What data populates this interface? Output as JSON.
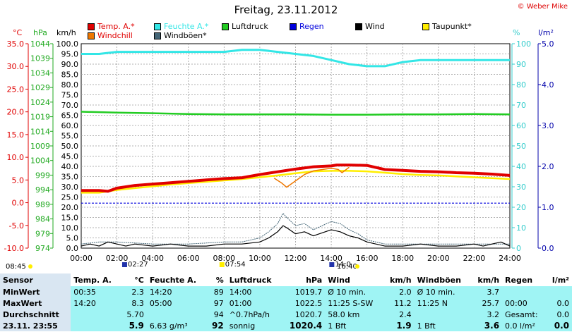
{
  "title": "Freitag, 23.11.2012",
  "copyright": "© Weber Mike",
  "legend": [
    {
      "label": "Temp. A.*",
      "color": "#e00000",
      "text_color": "#e00000"
    },
    {
      "label": "Feuchte A.*",
      "color": "#33e6e6",
      "text_color": "#33e6e6"
    },
    {
      "label": "Luftdruck",
      "color": "#22cc22",
      "text_color": "#000000"
    },
    {
      "label": "Regen",
      "color": "#0000dd",
      "text_color": "#0000dd"
    },
    {
      "label": "Wind",
      "color": "#000000",
      "text_color": "#000000"
    },
    {
      "label": "Taupunkt*",
      "color": "#ffee00",
      "text_color": "#000000"
    },
    {
      "label": "Windchill",
      "color": "#ee7700",
      "text_color": "#e00000"
    },
    {
      "label": "Windböen*",
      "color": "#446677",
      "text_color": "#000000"
    }
  ],
  "units": {
    "temp": "°C",
    "pressure": "hPa",
    "wind": "km/h",
    "humidity": "%",
    "rain": "l/m²"
  },
  "axes": {
    "temp_ticks": [
      "35.0",
      "30.0",
      "25.0",
      "20.0",
      "15.0",
      "10.0",
      "5.0",
      "0.0",
      "-5.0",
      "-10.0"
    ],
    "pressure_ticks": [
      "1044",
      "1039",
      "1034",
      "1029",
      "1024",
      "1019",
      "1014",
      "1009",
      "1004",
      "999",
      "994",
      "989",
      "984",
      "979",
      "974"
    ],
    "wind_ticks": [
      "100.0",
      "95.0",
      "90.0",
      "85.0",
      "80.0",
      "75.0",
      "70.0",
      "65.0",
      "60.0",
      "55.0",
      "50.0",
      "45.0",
      "40.0",
      "35.0",
      "30.0",
      "25.0",
      "20.0",
      "15.0",
      "10.0",
      "5.0",
      "0.0"
    ],
    "humidity_ticks": [
      "100",
      "90",
      "80",
      "70",
      "60",
      "50",
      "40",
      "30",
      "20",
      "10",
      "0"
    ],
    "rain_ticks": [
      "5.0",
      "4.0",
      "3.0",
      "2.0",
      "1.0",
      "0.0"
    ],
    "time_ticks": [
      "00:00",
      "02:00",
      "04:00",
      "06:00",
      "08:00",
      "10:00",
      "12:00",
      "14:00",
      "16:00",
      "18:00",
      "20:00",
      "22:00",
      "24:00"
    ]
  },
  "events": {
    "sunrise": "08:45",
    "sunset": "16:40",
    "minmax1": "02:27",
    "mark2": "07:54",
    "mark3": "14:0"
  },
  "chart_data": {
    "type": "line",
    "title": "Freitag, 23.11.2012",
    "x_unit": "hours",
    "xlim": [
      0,
      24
    ],
    "series": [
      {
        "name": "Temp. A.*",
        "axis": "°C",
        "ylim": [
          -10,
          35
        ],
        "x": [
          0,
          1,
          1.5,
          2,
          3,
          4,
          5,
          6,
          7,
          8,
          9,
          10,
          11,
          12,
          13,
          14,
          14.3,
          15,
          16,
          17,
          18,
          19,
          20,
          21,
          22,
          23,
          24
        ],
        "values": [
          2.7,
          2.7,
          2.5,
          3.2,
          3.8,
          4.1,
          4.4,
          4.7,
          5.0,
          5.3,
          5.5,
          6.2,
          6.8,
          7.4,
          7.9,
          8.1,
          8.3,
          8.3,
          8.2,
          7.3,
          7.1,
          6.9,
          6.8,
          6.6,
          6.5,
          6.3,
          6.0
        ]
      },
      {
        "name": "Feuchte A.*",
        "axis": "%",
        "ylim": [
          0,
          100
        ],
        "x": [
          0,
          1,
          2,
          4,
          6,
          8,
          9,
          10,
          11,
          12,
          13,
          14,
          15,
          16,
          17,
          18,
          19,
          20,
          22,
          23,
          24
        ],
        "values": [
          95,
          95,
          96,
          96,
          96,
          96,
          97,
          97,
          96,
          95,
          94,
          92,
          90,
          89,
          89,
          91,
          92,
          92,
          92,
          92,
          92
        ]
      },
      {
        "name": "Luftdruck",
        "axis": "hPa",
        "ylim": [
          974,
          1044
        ],
        "x": [
          0,
          2,
          4,
          6,
          8,
          10,
          12,
          14,
          16,
          18,
          20,
          22,
          24
        ],
        "values": [
          1020.7,
          1020.4,
          1020.2,
          1019.9,
          1019.8,
          1019.8,
          1019.8,
          1019.7,
          1019.7,
          1019.8,
          1019.8,
          1019.9,
          1019.8
        ]
      },
      {
        "name": "Taupunkt*",
        "axis": "°C",
        "ylim": [
          -10,
          35
        ],
        "x": [
          0,
          1,
          2,
          3,
          4,
          5,
          6,
          7,
          8,
          9,
          10,
          11,
          12,
          13,
          14,
          15,
          16,
          17,
          18,
          19,
          20,
          21,
          22,
          23,
          24
        ],
        "values": [
          2.2,
          2.2,
          2.8,
          3.2,
          3.6,
          4.0,
          4.3,
          4.6,
          4.9,
          5.2,
          5.6,
          6.0,
          6.5,
          6.9,
          7.0,
          7.0,
          6.9,
          6.6,
          6.3,
          6.1,
          6.0,
          5.8,
          5.6,
          5.4,
          5.2
        ]
      },
      {
        "name": "Windchill",
        "axis": "°C",
        "ylim": [
          -10,
          35
        ],
        "x": [
          10.8,
          11.2,
          11.5,
          12,
          12.5,
          13,
          14,
          14.4,
          14.6,
          15
        ],
        "values": [
          5.4,
          4.4,
          3.4,
          4.8,
          6.2,
          7.0,
          7.6,
          7.3,
          6.6,
          7.8
        ]
      },
      {
        "name": "Wind",
        "axis": "km/h",
        "ylim": [
          0,
          100
        ],
        "x": [
          0,
          0.5,
          1,
          1.5,
          2,
          2.5,
          3,
          4,
          5,
          6,
          7,
          8,
          9,
          10,
          10.5,
          11,
          11.3,
          11.5,
          12,
          12.5,
          13,
          14,
          14.5,
          15,
          15.5,
          16,
          16.5,
          17,
          18,
          19,
          20,
          21,
          22,
          22.5,
          23,
          23.5,
          24
        ],
        "values": [
          1,
          2,
          1,
          3,
          2,
          1,
          2,
          1,
          2,
          1,
          1,
          2,
          2,
          3,
          5,
          8,
          11,
          10,
          7,
          8,
          6,
          9,
          8,
          6,
          5,
          3,
          2,
          1,
          1,
          2,
          1,
          1,
          2,
          1,
          2,
          3,
          1
        ]
      },
      {
        "name": "Windböen*",
        "axis": "km/h",
        "ylim": [
          0,
          100
        ],
        "x": [
          0,
          1,
          2,
          4,
          6,
          8,
          9,
          10,
          10.5,
          11,
          11.3,
          11.5,
          12,
          12.5,
          13,
          14,
          14.5,
          15,
          15.5,
          16,
          17,
          18,
          20,
          22,
          24
        ],
        "values": [
          2,
          3,
          3,
          2,
          2,
          3,
          3,
          5,
          8,
          12,
          17,
          15,
          11,
          12,
          9,
          13,
          12,
          9,
          7,
          4,
          2,
          2,
          2,
          2,
          2
        ]
      },
      {
        "name": "Regen",
        "axis": "l/m²",
        "ylim": [
          0,
          5
        ],
        "x": [
          0,
          24
        ],
        "values": [
          1.1,
          1.1
        ]
      }
    ]
  },
  "stats": {
    "headers": [
      "Sensor",
      "Temp. A.",
      "°C",
      "Feuchte A.",
      "%",
      "Luftdruck",
      "hPa",
      "Wind",
      "km/h",
      "Windböen",
      "km/h",
      "Regen",
      "l/m²"
    ],
    "rows": [
      {
        "label": "MinWert",
        "cells": [
          "00:35",
          "2.3",
          "14:20",
          "89",
          "14:00",
          "1019.7",
          "Ø 10 min.",
          "2.0",
          "Ø 10 min.",
          "3.7",
          "",
          ""
        ]
      },
      {
        "label": "MaxWert",
        "cells": [
          "14:20",
          "8.3",
          "05:00",
          "97",
          "01:00",
          "1022.5",
          "11:25   S-SW",
          "11.2",
          "11:25   N",
          "25.7",
          "00:00",
          "0.0"
        ]
      },
      {
        "label": "Durchschnitt",
        "cells": [
          "",
          "5.70",
          "",
          "94",
          "^0.7hPa/h",
          "1020.7",
          "58.0 km",
          "2.4",
          "",
          "3.2",
          "Gesamt:",
          "0.0"
        ]
      },
      {
        "label": "23.11.  23:55",
        "cells": [
          "",
          "5.9",
          "6.63 g/m³",
          "92",
          "sonnig",
          "1020.4",
          "1 Bft",
          "1.9",
          "1 Bft",
          "3.6",
          "0.0 l/m²",
          "0.0"
        ]
      }
    ]
  }
}
